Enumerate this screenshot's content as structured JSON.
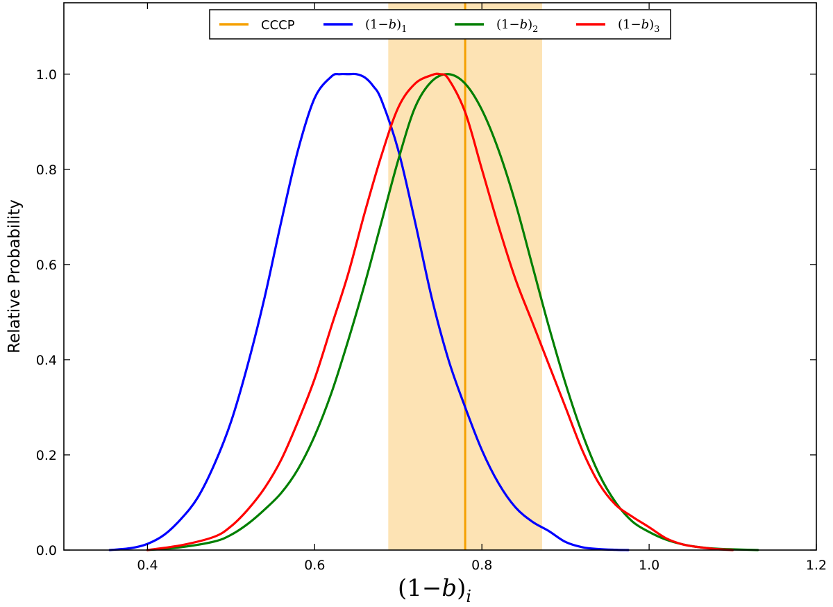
{
  "chart_data": {
    "type": "line",
    "xlabel": {
      "prefix": "(1−",
      "var": "b",
      "suffix": ")",
      "subscript": "i"
    },
    "ylabel": "Relative Probability",
    "xlim": [
      0.3,
      1.2
    ],
    "ylim": [
      0.0,
      1.15
    ],
    "xticks": [
      "0.4",
      "0.6",
      "0.8",
      "1.0",
      "1.2"
    ],
    "yticks": [
      "0.0",
      "0.2",
      "0.4",
      "0.6",
      "0.8",
      "1.0"
    ],
    "legend_position": "top-center",
    "reference": {
      "name": "CCCP",
      "value": 0.78,
      "band": [
        0.688,
        0.872
      ],
      "line_color": "#f5a000",
      "band_color": "#fde3b4"
    },
    "series": [
      {
        "name": "(1−b)1",
        "label_prefix": "(1−",
        "label_var": "b",
        "label_suffix": ")",
        "label_sub": "1",
        "color": "#0000ff",
        "x": [
          0.355,
          0.38,
          0.4,
          0.42,
          0.44,
          0.46,
          0.48,
          0.5,
          0.52,
          0.54,
          0.56,
          0.58,
          0.6,
          0.62,
          0.63,
          0.64,
          0.65,
          0.66,
          0.67,
          0.68,
          0.7,
          0.72,
          0.74,
          0.76,
          0.78,
          0.8,
          0.82,
          0.84,
          0.86,
          0.88,
          0.9,
          0.92,
          0.94,
          0.96,
          0.975
        ],
        "y": [
          0.0,
          0.004,
          0.013,
          0.032,
          0.065,
          0.11,
          0.18,
          0.27,
          0.39,
          0.53,
          0.69,
          0.84,
          0.95,
          0.995,
          1.0,
          1.0,
          1.0,
          0.993,
          0.975,
          0.945,
          0.84,
          0.69,
          0.53,
          0.4,
          0.3,
          0.21,
          0.14,
          0.09,
          0.06,
          0.04,
          0.017,
          0.006,
          0.002,
          0.0005,
          0.0
        ]
      },
      {
        "name": "(1−b)2",
        "label_prefix": "(1−",
        "label_var": "b",
        "label_suffix": ")",
        "label_sub": "2",
        "color": "#007f00",
        "x": [
          0.4,
          0.44,
          0.48,
          0.5,
          0.52,
          0.54,
          0.56,
          0.58,
          0.6,
          0.62,
          0.64,
          0.66,
          0.68,
          0.7,
          0.72,
          0.74,
          0.76,
          0.78,
          0.8,
          0.82,
          0.84,
          0.86,
          0.88,
          0.9,
          0.92,
          0.94,
          0.96,
          0.98,
          1.0,
          1.02,
          1.04,
          1.06,
          1.08,
          1.1,
          1.13
        ],
        "y": [
          0.0,
          0.006,
          0.018,
          0.032,
          0.055,
          0.085,
          0.12,
          0.17,
          0.24,
          0.33,
          0.44,
          0.56,
          0.69,
          0.82,
          0.93,
          0.985,
          1.0,
          0.98,
          0.925,
          0.84,
          0.73,
          0.6,
          0.47,
          0.35,
          0.245,
          0.16,
          0.1,
          0.06,
          0.038,
          0.022,
          0.012,
          0.006,
          0.003,
          0.0015,
          0.0
        ]
      },
      {
        "name": "(1−b)3",
        "label_prefix": "(1−",
        "label_var": "b",
        "label_suffix": ")",
        "label_sub": "3",
        "color": "#ff0000",
        "x": [
          0.4,
          0.44,
          0.48,
          0.5,
          0.52,
          0.54,
          0.56,
          0.58,
          0.6,
          0.62,
          0.64,
          0.66,
          0.68,
          0.7,
          0.72,
          0.74,
          0.75,
          0.76,
          0.78,
          0.8,
          0.82,
          0.84,
          0.86,
          0.88,
          0.9,
          0.92,
          0.94,
          0.96,
          0.98,
          1.0,
          1.02,
          1.04,
          1.06,
          1.08,
          1.1
        ],
        "y": [
          0.0,
          0.01,
          0.028,
          0.05,
          0.085,
          0.13,
          0.19,
          0.27,
          0.36,
          0.47,
          0.58,
          0.71,
          0.83,
          0.93,
          0.98,
          0.998,
          1.0,
          0.99,
          0.92,
          0.8,
          0.68,
          0.57,
          0.48,
          0.39,
          0.3,
          0.21,
          0.14,
          0.095,
          0.07,
          0.048,
          0.025,
          0.012,
          0.006,
          0.002,
          0.0
        ]
      }
    ]
  }
}
